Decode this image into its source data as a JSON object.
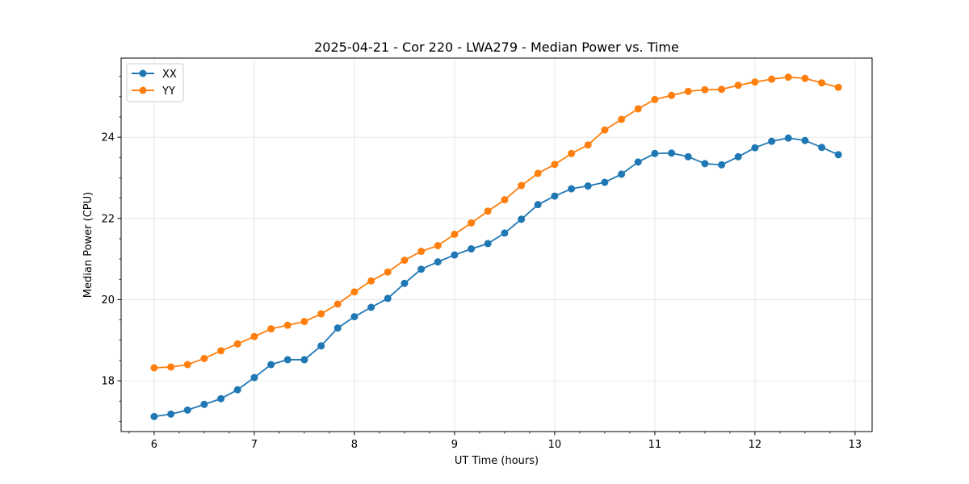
{
  "chart_data": {
    "type": "line",
    "title": "2025-04-21 - Cor 220 - LWA279 - Median Power vs. Time",
    "xlabel": "UT Time (hours)",
    "ylabel": "Median Power (CPU)",
    "xlim": [
      5.67,
      13.17
    ],
    "ylim": [
      16.75,
      25.95
    ],
    "xticks": [
      6,
      7,
      8,
      9,
      10,
      11,
      12,
      13
    ],
    "xtick_labels": [
      "6",
      "7",
      "8",
      "9",
      "10",
      "11",
      "12",
      "13"
    ],
    "yticks": [
      18,
      20,
      22,
      24
    ],
    "ytick_labels": [
      "18",
      "20",
      "22",
      "24"
    ],
    "grid": true,
    "legend_position": "top-left",
    "x": [
      6.0,
      6.167,
      6.333,
      6.5,
      6.667,
      6.833,
      7.0,
      7.167,
      7.333,
      7.5,
      7.667,
      7.833,
      8.0,
      8.167,
      8.333,
      8.5,
      8.667,
      8.833,
      9.0,
      9.167,
      9.333,
      9.5,
      9.667,
      9.833,
      10.0,
      10.167,
      10.333,
      10.5,
      10.667,
      10.833,
      11.0,
      11.167,
      11.333,
      11.5,
      11.667,
      11.833,
      12.0,
      12.167,
      12.333,
      12.5,
      12.667,
      12.833
    ],
    "series": [
      {
        "name": "XX",
        "color": "#1f77b4",
        "values": [
          17.12,
          17.18,
          17.28,
          17.42,
          17.56,
          17.78,
          18.08,
          18.4,
          18.52,
          18.52,
          18.86,
          19.3,
          19.58,
          19.81,
          20.03,
          20.4,
          20.75,
          20.93,
          21.1,
          21.25,
          21.38,
          21.64,
          21.98,
          22.34,
          22.55,
          22.73,
          22.8,
          22.89,
          23.09,
          23.39,
          23.6,
          23.61,
          23.52,
          23.35,
          23.32,
          23.52,
          23.74,
          23.9,
          23.98,
          23.92,
          23.75,
          23.57
        ]
      },
      {
        "name": "YY",
        "color": "#ff7f0e",
        "values": [
          18.32,
          18.34,
          18.4,
          18.55,
          18.74,
          18.91,
          19.09,
          19.28,
          19.37,
          19.46,
          19.65,
          19.89,
          20.19,
          20.46,
          20.68,
          20.97,
          21.19,
          21.33,
          21.61,
          21.89,
          22.18,
          22.46,
          22.81,
          23.11,
          23.33,
          23.6,
          23.81,
          24.18,
          24.44,
          24.7,
          24.93,
          25.03,
          25.13,
          25.17,
          25.18,
          25.28,
          25.36,
          25.43,
          25.48,
          25.45,
          25.34,
          25.23
        ]
      }
    ]
  }
}
